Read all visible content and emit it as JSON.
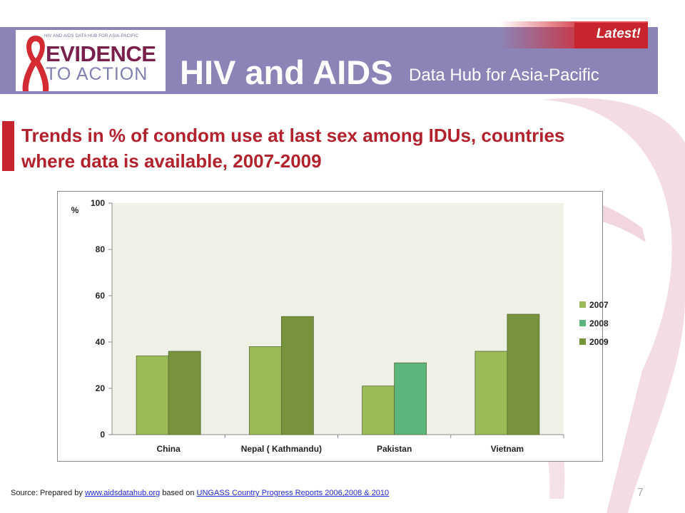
{
  "header": {
    "logo_small": "HIV AND AIDS DATA HUB FOR ASIA-PACIFIC",
    "logo_line1": "EVIDENCE",
    "logo_line2": "TO ACTION",
    "title": "HIV and AIDS",
    "subtitle": "Data Hub for Asia-Pacific",
    "badge": "Latest!",
    "band_color": "#8b84b7",
    "accent_color": "#c8242d"
  },
  "slide": {
    "title": "Trends in % of condom use at last sex among IDUs, countries where data is available, 2007-2009",
    "page_number": "7"
  },
  "chart_data": {
    "type": "bar",
    "title": "",
    "ylabel": "%",
    "xlabel": "",
    "ylim": [
      0,
      100
    ],
    "yticks": [
      0,
      20,
      40,
      60,
      80,
      100
    ],
    "categories": [
      "China",
      "Nepal ( Kathmandu)",
      "Pakistan",
      "Vietnam"
    ],
    "series": [
      {
        "name": "2007",
        "color": "#9bbb59",
        "values": [
          34,
          38,
          21,
          36
        ]
      },
      {
        "name": "2008",
        "color": "#5bb57c",
        "values": [
          null,
          null,
          31,
          null
        ]
      },
      {
        "name": "2009",
        "color": "#77933c",
        "values": [
          36,
          51,
          null,
          52
        ]
      }
    ],
    "legend": "right",
    "plot_background": "#eff1e7"
  },
  "source": {
    "prefix": "Source: Prepared by ",
    "link1": "www.aidsdatahub.org",
    "middle": " based on ",
    "link2": "UNGASS Country Progress Reports  2006,2008  & 2010"
  }
}
